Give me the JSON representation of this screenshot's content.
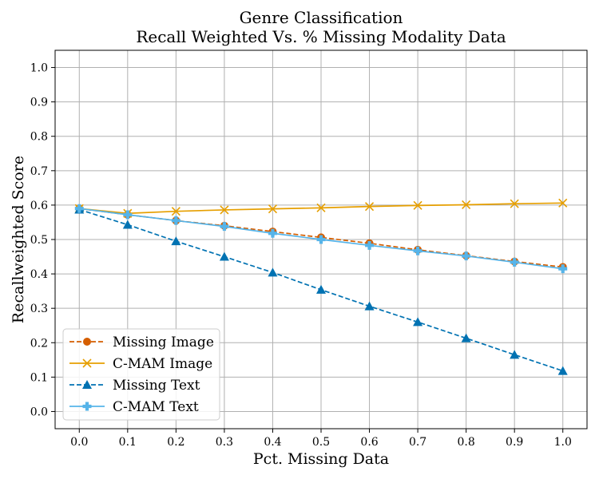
{
  "chart_data": {
    "type": "line",
    "title": "Genre Classification",
    "subtitle": "Recall Weighted Vs. % Missing Modality Data",
    "xlabel": "Pct. Missing Data",
    "ylabel": "Recallweighted Score",
    "x": [
      0.0,
      0.1,
      0.2,
      0.3,
      0.4,
      0.5,
      0.6,
      0.7,
      0.8,
      0.9,
      1.0
    ],
    "x_ticks": [
      "0.0",
      "0.1",
      "0.2",
      "0.3",
      "0.4",
      "0.5",
      "0.6",
      "0.7",
      "0.8",
      "0.9",
      "1.0"
    ],
    "y_ticks": [
      "0.0",
      "0.1",
      "0.2",
      "0.3",
      "0.4",
      "0.5",
      "0.6",
      "0.7",
      "0.8",
      "0.9",
      "1.0"
    ],
    "xlim": [
      -0.05,
      1.05
    ],
    "ylim": [
      -0.05,
      1.05
    ],
    "grid": true,
    "legend_position": "lower-left",
    "series": [
      {
        "name": "Missing Image",
        "color": "#d55e00",
        "linestyle": "dashed",
        "marker": "circle",
        "values": [
          0.59,
          0.572,
          0.555,
          0.54,
          0.523,
          0.506,
          0.489,
          0.47,
          0.453,
          0.436,
          0.42
        ]
      },
      {
        "name": "C-MAM Image",
        "color": "#e69f00",
        "linestyle": "solid",
        "marker": "x",
        "values": [
          0.59,
          0.576,
          0.582,
          0.586,
          0.589,
          0.592,
          0.596,
          0.599,
          0.601,
          0.604,
          0.606
        ]
      },
      {
        "name": "Missing Text",
        "color": "#0072b2",
        "linestyle": "dashed",
        "marker": "triangle",
        "values": [
          0.587,
          0.543,
          0.495,
          0.45,
          0.404,
          0.354,
          0.306,
          0.26,
          0.213,
          0.165,
          0.118
        ]
      },
      {
        "name": "C-MAM Text",
        "color": "#56b4e9",
        "linestyle": "solid",
        "marker": "plus",
        "values": [
          0.59,
          0.572,
          0.555,
          0.538,
          0.518,
          0.5,
          0.483,
          0.467,
          0.452,
          0.434,
          0.415
        ]
      }
    ]
  }
}
